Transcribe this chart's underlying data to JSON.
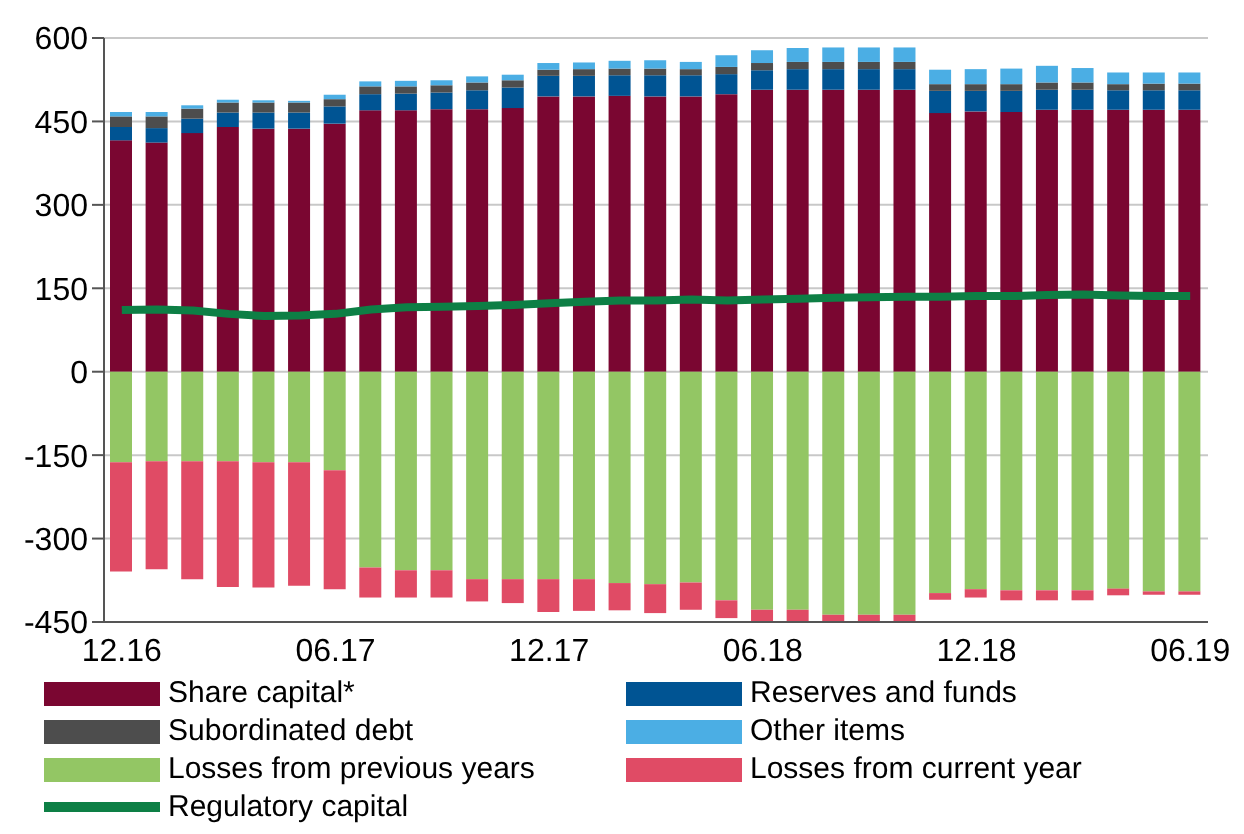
{
  "chart_data": {
    "type": "bar",
    "stacked": true,
    "categories": [
      "12.16",
      null,
      null,
      null,
      null,
      null,
      "06.17",
      null,
      null,
      null,
      null,
      null,
      "12.17",
      null,
      null,
      null,
      null,
      null,
      "06.18",
      null,
      null,
      null,
      null,
      null,
      "12.18",
      null,
      null,
      null,
      null,
      null,
      "06.19"
    ],
    "series": [
      {
        "name": "Share capital*",
        "color": "#7a0631",
        "values": [
          416,
          412,
          429,
          440,
          437,
          437,
          446,
          470,
          470,
          472,
          472,
          474,
          495,
          495,
          496,
          495,
          495,
          499,
          507,
          507,
          507,
          507,
          507,
          465,
          468,
          467,
          471,
          471,
          471,
          471,
          471
        ]
      },
      {
        "name": "Reserves and funds",
        "color": "#005493",
        "values": [
          24,
          26,
          26,
          26,
          29,
          29,
          31,
          29,
          30,
          30,
          34,
          37,
          37,
          37,
          37,
          38,
          38,
          36,
          35,
          37,
          37,
          37,
          37,
          40,
          37,
          38,
          36,
          36,
          35,
          35,
          35
        ]
      },
      {
        "name": "Subordinated debt",
        "color": "#4d4d4d",
        "values": [
          19,
          21,
          18,
          18,
          18,
          18,
          13,
          14,
          13,
          13,
          14,
          13,
          11,
          12,
          12,
          12,
          11,
          13,
          13,
          13,
          13,
          13,
          13,
          12,
          12,
          12,
          13,
          13,
          11,
          12,
          12
        ]
      },
      {
        "name": "Other items",
        "color": "#4baee4",
        "values": [
          8,
          8,
          6,
          5,
          4,
          3,
          8,
          9,
          10,
          9,
          11,
          10,
          12,
          12,
          14,
          15,
          13,
          21,
          23,
          25,
          26,
          26,
          26,
          26,
          27,
          28,
          30,
          26,
          21,
          20,
          20
        ]
      },
      {
        "name": "Losses from previous years",
        "color": "#93c664",
        "values": [
          -163,
          -161,
          -161,
          -161,
          -163,
          -163,
          -177,
          -352,
          -357,
          -357,
          -373,
          -373,
          -373,
          -373,
          -380,
          -382,
          -379,
          -411,
          -428,
          -428,
          -437,
          -437,
          -437,
          -398,
          -391,
          -393,
          -393,
          -393,
          -390,
          -395,
          -395
        ]
      },
      {
        "name": "Losses from current year",
        "color": "#e04b65",
        "values": [
          -196,
          -194,
          -212,
          -226,
          -225,
          -222,
          -214,
          -54,
          -49,
          -49,
          -40,
          -43,
          -59,
          -57,
          -49,
          -52,
          -49,
          -32,
          -21,
          -21,
          -12,
          -13,
          -13,
          -12,
          -15,
          -18,
          -18,
          -18,
          -12,
          -6,
          -6
        ]
      },
      {
        "name": "Regulatory capital",
        "type": "line",
        "color": "#0d7f45",
        "marker": "none",
        "values": [
          111,
          112,
          110,
          104,
          100,
          101,
          104,
          112,
          116,
          117,
          118,
          120,
          123,
          126,
          128,
          128,
          130,
          128,
          130,
          131,
          133,
          134,
          135,
          135,
          136,
          136,
          138,
          139,
          137,
          136,
          136
        ]
      }
    ],
    "ylim": [
      -450,
      600
    ],
    "yticks": [
      -450,
      -300,
      -150,
      0,
      150,
      300,
      450,
      600
    ],
    "grid": "y",
    "legend": "bottom"
  }
}
